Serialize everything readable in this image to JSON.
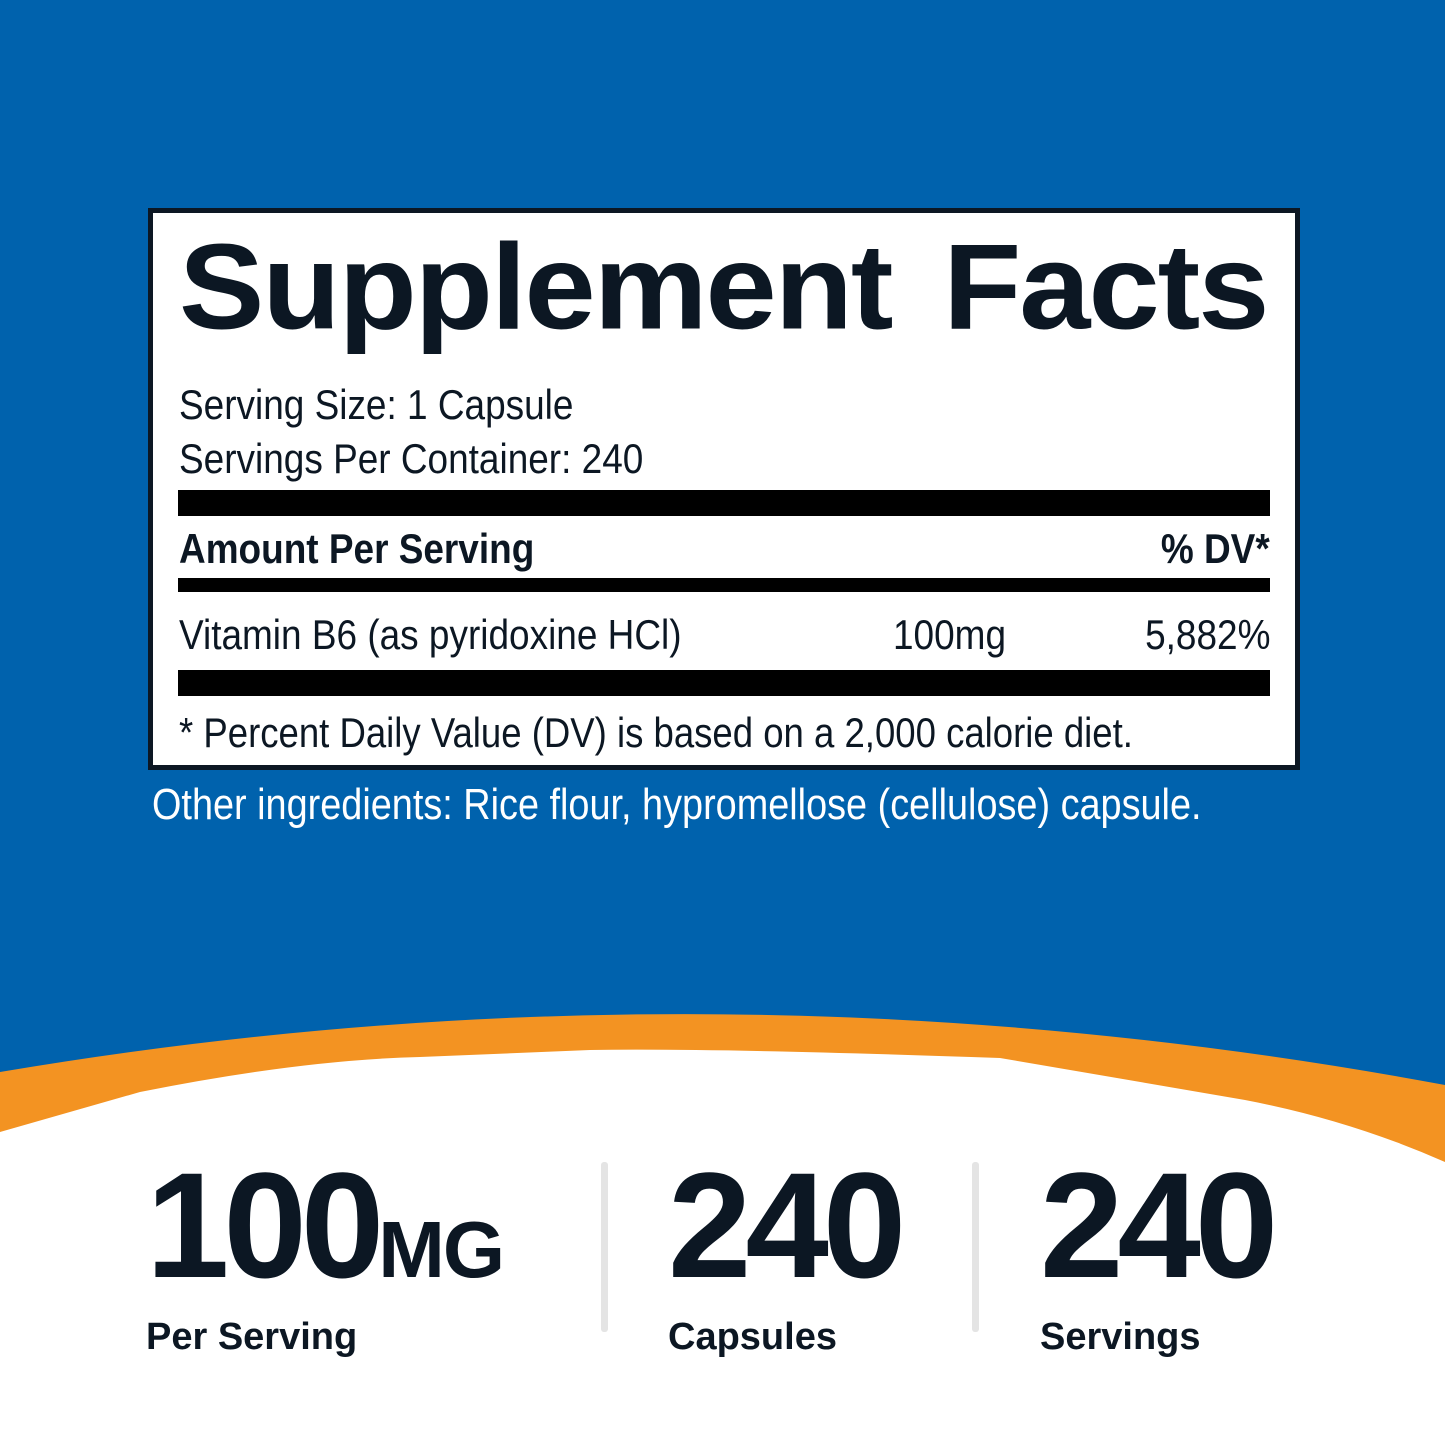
{
  "colors": {
    "background": "#0062ad",
    "accent": "#f39322",
    "text": "#0c1723"
  },
  "facts": {
    "title": "Supplement Facts",
    "serving_size": "Serving Size: 1 Capsule",
    "servings_per_container": "Servings Per Container: 240",
    "header_amount": "Amount Per Serving",
    "header_dv": "% DV*",
    "rows": [
      {
        "name": "Vitamin B6 (as pyridoxine HCl)",
        "amount": "100mg",
        "dv": "5,882%"
      }
    ],
    "footnote": "* Percent Daily Value (DV) is based on a 2,000 calorie diet."
  },
  "other_ingredients": "Other ingredients: Rice flour, hypromellose (cellulose) capsule.",
  "stats": [
    {
      "value": "100",
      "unit": "MG",
      "label": "Per Serving"
    },
    {
      "value": "240",
      "unit": "",
      "label": "Capsules"
    },
    {
      "value": "240",
      "unit": "",
      "label": "Servings"
    }
  ]
}
